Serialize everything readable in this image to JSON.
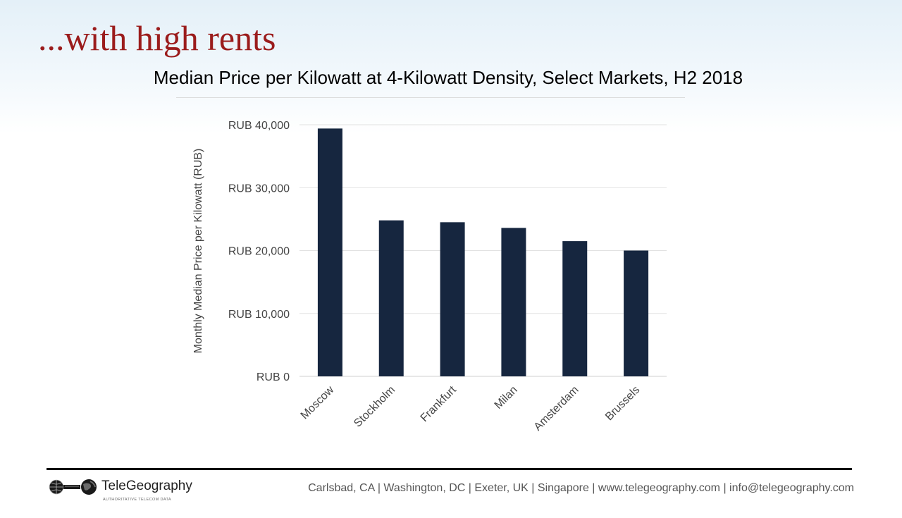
{
  "slide": {
    "title": "...with high rents"
  },
  "footer": {
    "logo_text": "TeleGeography",
    "logo_tagline": "AUTHORITATIVE TELECOM DATA",
    "contact": "Carlsbad, CA | Washington, DC | Exeter, UK | Singapore | www.telegeography.com | info@telegeography.com"
  },
  "colors": {
    "title": "#9b1c1c",
    "bar": "#16263f",
    "grid": "#e2e2e2"
  },
  "chart_data": {
    "type": "bar",
    "title": "Median Price per Kilowatt at 4-Kilowatt Density, Select Markets, H2 2018",
    "xlabel": "",
    "ylabel": "Monthly Median Price per Kilowatt (RUB)",
    "categories": [
      "Moscow",
      "Stockholm",
      "Frankfurt",
      "Milan",
      "Amsterdam",
      "Brussels"
    ],
    "values": [
      39400,
      24800,
      24500,
      23600,
      21500,
      20000
    ],
    "ylim": [
      0,
      40000
    ],
    "yticks": [
      0,
      10000,
      20000,
      30000,
      40000
    ],
    "ytick_labels": [
      "RUB 0",
      "RUB 10,000",
      "RUB 20,000",
      "RUB 30,000",
      "RUB 40,000"
    ],
    "grid": true,
    "legend": "none"
  }
}
